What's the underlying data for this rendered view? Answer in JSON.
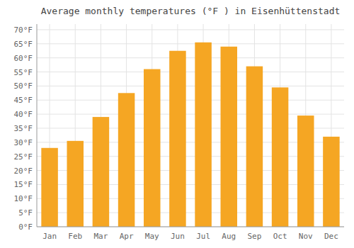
{
  "chart_data": {
    "type": "bar",
    "title": "Average monthly temperatures (°F ) in Eisenhüttenstadt",
    "categories": [
      "Jan",
      "Feb",
      "Mar",
      "Apr",
      "May",
      "Jun",
      "Jul",
      "Aug",
      "Sep",
      "Oct",
      "Nov",
      "Dec"
    ],
    "values": [
      28,
      30.5,
      39,
      47.5,
      56,
      62.5,
      65.5,
      64,
      57,
      49.5,
      39.5,
      32
    ],
    "color": "#F5A623",
    "ylim": [
      0,
      72
    ],
    "yticks": [
      {
        "value": 0,
        "label": "0°F"
      },
      {
        "value": 5,
        "label": "5°F"
      },
      {
        "value": 10,
        "label": "10°F"
      },
      {
        "value": 15,
        "label": "15°F"
      },
      {
        "value": 20,
        "label": "20°F"
      },
      {
        "value": 25,
        "label": "25°F"
      },
      {
        "value": 30,
        "label": "30°F"
      },
      {
        "value": 35,
        "label": "35°F"
      },
      {
        "value": 40,
        "label": "40°F"
      },
      {
        "value": 45,
        "label": "45°F"
      },
      {
        "value": 50,
        "label": "50°F"
      },
      {
        "value": 55,
        "label": "55°F"
      },
      {
        "value": 60,
        "label": "60°F"
      },
      {
        "value": 65,
        "label": "65°F"
      },
      {
        "value": 70,
        "label": "70°F"
      }
    ],
    "grid": true
  }
}
